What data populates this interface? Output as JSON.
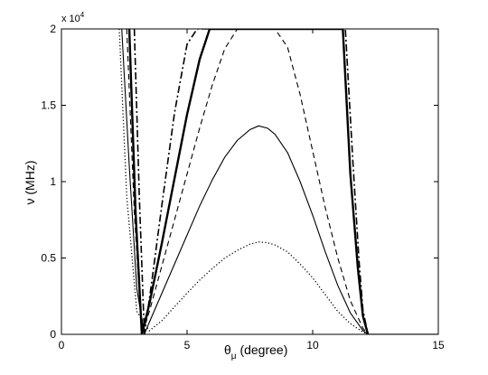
{
  "chart_data": {
    "type": "line",
    "title": "",
    "xlabel_main": "θ",
    "xlabel_sub": "μ",
    "xlabel_rest": " (degree)",
    "ylabel": "ν  (MHz)",
    "xlim": [
      0,
      15
    ],
    "ylim": [
      0,
      20000
    ],
    "x_ticks": [
      0,
      5,
      10,
      15
    ],
    "x_tick_labels": [
      "0",
      "5",
      "10",
      "15"
    ],
    "y_ticks": [
      0,
      5000,
      10000,
      15000,
      20000
    ],
    "y_tick_labels": [
      "0",
      "0.5",
      "1",
      "1.5",
      "2"
    ],
    "y_multiplier_base": "x 10",
    "y_multiplier_exp": "4",
    "grid": false,
    "legend": "none",
    "series": [
      {
        "style": "dotted",
        "x": [
          2.3,
          2.6,
          3.0,
          3.5,
          4.0,
          4.5,
          5.0,
          5.5,
          6.0,
          6.5,
          7.0,
          7.5,
          7.85,
          8.2,
          8.5,
          9.0,
          9.5,
          10.0,
          10.5,
          11.0,
          11.5,
          12.0,
          12.2
        ],
        "y": [
          20000,
          9000,
          1500,
          230,
          900,
          1800,
          2700,
          3550,
          4300,
          5000,
          5500,
          5900,
          6050,
          6000,
          5850,
          5400,
          4600,
          3700,
          2600,
          1500,
          700,
          150,
          0
        ]
      },
      {
        "style": "solid-thin",
        "x": [
          2.4,
          2.7,
          3.0,
          3.3,
          3.5,
          4.0,
          4.5,
          5.0,
          5.5,
          6.0,
          6.5,
          7.0,
          7.5,
          7.85,
          8.2,
          8.5,
          9.0,
          9.5,
          10.0,
          10.5,
          11.0,
          11.5,
          12.0,
          12.2
        ],
        "y": [
          20000,
          11000,
          3000,
          0,
          800,
          2700,
          4600,
          6500,
          8400,
          10100,
          11600,
          12700,
          13400,
          13650,
          13500,
          13100,
          11900,
          10000,
          7800,
          5400,
          3200,
          1400,
          250,
          0
        ]
      },
      {
        "style": "dashed",
        "x": [
          2.6,
          2.9,
          3.2,
          3.5,
          4.0,
          4.5,
          5.0,
          5.5,
          6.0,
          6.5,
          7.0,
          8.5,
          9.0,
          9.5,
          10.0,
          10.5,
          11.0,
          11.5,
          12.0,
          12.2
        ],
        "y": [
          20000,
          8000,
          0,
          1500,
          4500,
          7500,
          10500,
          13500,
          16300,
          18700,
          20000,
          20000,
          18800,
          15700,
          12000,
          8300,
          5000,
          2200,
          400,
          0
        ]
      },
      {
        "style": "solid-thick",
        "x": [
          2.7,
          2.95,
          3.2,
          3.5,
          4.0,
          4.5,
          5.0,
          5.5,
          5.9,
          11.2,
          11.5,
          11.8,
          12.0,
          12.2
        ],
        "y": [
          20000,
          8000,
          0,
          2000,
          6000,
          10200,
          14400,
          18000,
          20000,
          20000,
          10500,
          4300,
          1200,
          0
        ]
      },
      {
        "style": "dashdot",
        "x": [
          2.9,
          3.1,
          3.3,
          3.6,
          4.0,
          4.5,
          5.0,
          5.4,
          11.3,
          11.6,
          11.85,
          12.0,
          12.2
        ],
        "y": [
          20000,
          9000,
          0,
          3500,
          8500,
          14500,
          19000,
          20000,
          20000,
          11300,
          4700,
          1600,
          0
        ]
      },
      {
        "style": "baseline",
        "x": [
          12.2,
          15.0
        ],
        "y": [
          0,
          0
        ]
      }
    ]
  }
}
